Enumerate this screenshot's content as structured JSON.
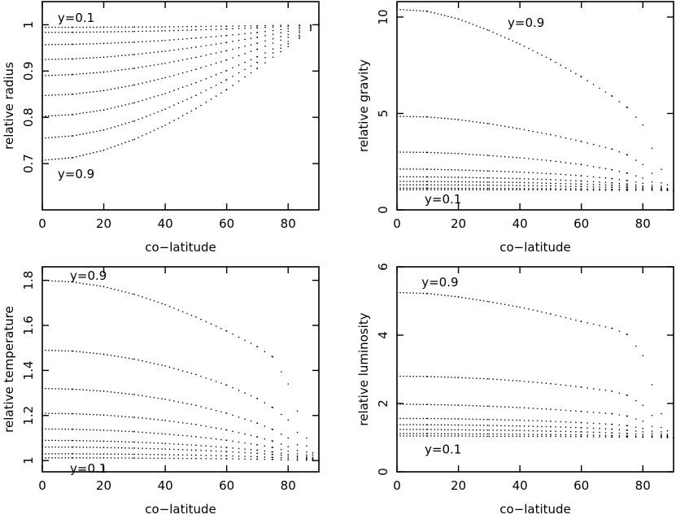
{
  "chart_data": [
    {
      "id": "radius",
      "type": "scatter",
      "xlabel": "co−latitude",
      "ylabel": "relative radius",
      "xlim": [
        0,
        90
      ],
      "ylim": [
        0.6,
        1.05
      ],
      "xticks": [
        0,
        20,
        40,
        60,
        80
      ],
      "xtick_labels": [
        "0",
        "20",
        "40",
        "60",
        "80"
      ],
      "yticks": [
        0.7,
        0.8,
        0.9,
        1.0
      ],
      "ytick_labels": [
        "0.7",
        "0.8",
        "0.9",
        "1"
      ],
      "annotations": [
        {
          "text": "y=0.1",
          "x": 5,
          "y": 1.015
        },
        {
          "text": "y=0.9",
          "x": 5,
          "y": 0.677
        }
      ],
      "x": [
        0,
        10,
        20,
        30,
        40,
        50,
        60,
        70,
        80,
        90
      ],
      "series": [
        {
          "values": [
            0.9945,
            0.9946,
            0.9948,
            0.9951,
            0.9955,
            0.9963,
            0.997,
            0.9979,
            0.999,
            1.0
          ]
        },
        {
          "values": [
            0.9835,
            0.9838,
            0.9845,
            0.9856,
            0.987,
            0.9888,
            0.9909,
            0.9936,
            0.9967,
            1.0
          ]
        },
        {
          "values": [
            0.957,
            0.9578,
            0.9596,
            0.9625,
            0.9663,
            0.9712,
            0.9768,
            0.9834,
            0.9915,
            1.0
          ]
        },
        {
          "values": [
            0.925,
            0.9263,
            0.93,
            0.9357,
            0.943,
            0.9517,
            0.9617,
            0.9732,
            0.986,
            1.0
          ]
        },
        {
          "values": [
            0.89,
            0.8925,
            0.8978,
            0.906,
            0.9168,
            0.9296,
            0.944,
            0.9601,
            0.979,
            1.0
          ]
        },
        {
          "values": [
            0.847,
            0.85,
            0.8578,
            0.87,
            0.8857,
            0.9038,
            0.9241,
            0.9473,
            0.973,
            1.0
          ]
        },
        {
          "values": [
            0.802,
            0.806,
            0.816,
            0.8315,
            0.8515,
            0.875,
            0.901,
            0.931,
            0.964,
            1.0
          ]
        },
        {
          "values": [
            0.755,
            0.76,
            0.7725,
            0.7922,
            0.8177,
            0.8475,
            0.8812,
            0.919,
            0.959,
            1.0
          ]
        },
        {
          "values": [
            0.707,
            0.713,
            0.729,
            0.7525,
            0.783,
            0.819,
            0.86,
            0.906,
            0.953,
            1.0
          ]
        }
      ]
    },
    {
      "id": "gravity",
      "type": "scatter",
      "xlabel": "co−latitude",
      "ylabel": "relative gravity",
      "xlim": [
        0,
        90
      ],
      "ylim": [
        0,
        10.8
      ],
      "xticks": [
        0,
        20,
        40,
        60,
        80
      ],
      "xtick_labels": [
        "0",
        "20",
        "40",
        "60",
        "80"
      ],
      "yticks": [
        0,
        5,
        10
      ],
      "ytick_labels": [
        "0",
        "5",
        "10"
      ],
      "annotations": [
        {
          "text": "y=0.9",
          "x": 36,
          "y": 9.7
        },
        {
          "text": "y=0.1",
          "x": 9,
          "y": 0.55
        }
      ],
      "x": [
        0,
        10,
        20,
        30,
        40,
        50,
        60,
        70,
        75,
        80,
        83,
        86,
        88,
        90
      ],
      "series": [
        {
          "values": [
            1.05,
            1.05,
            1.05,
            1.04,
            1.04,
            1.04,
            1.03,
            1.02,
            1.02,
            1.01,
            1.01,
            1.0,
            1.0,
            1.0
          ]
        },
        {
          "values": [
            1.13,
            1.13,
            1.12,
            1.12,
            1.11,
            1.1,
            1.09,
            1.07,
            1.06,
            1.05,
            1.04,
            1.02,
            1.01,
            1.0
          ]
        },
        {
          "values": [
            1.3,
            1.3,
            1.29,
            1.28,
            1.26,
            1.24,
            1.21,
            1.17,
            1.15,
            1.11,
            1.08,
            1.05,
            1.02,
            1.0
          ]
        },
        {
          "values": [
            1.48,
            1.47,
            1.46,
            1.44,
            1.42,
            1.38,
            1.34,
            1.28,
            1.24,
            1.18,
            1.13,
            1.07,
            1.03,
            1.0
          ]
        },
        {
          "values": [
            1.72,
            1.71,
            1.69,
            1.66,
            1.62,
            1.57,
            1.5,
            1.4,
            1.34,
            1.25,
            1.18,
            1.1,
            1.04,
            1.0
          ]
        },
        {
          "values": [
            2.12,
            2.11,
            2.07,
            2.02,
            1.96,
            1.88,
            1.77,
            1.62,
            1.52,
            1.38,
            1.27,
            1.15,
            1.06,
            1.0
          ]
        },
        {
          "values": [
            3.0,
            2.98,
            2.92,
            2.82,
            2.7,
            2.55,
            2.35,
            2.08,
            1.9,
            1.65,
            1.45,
            1.23,
            1.09,
            1.0
          ]
        },
        {
          "values": [
            4.85,
            4.82,
            4.68,
            4.47,
            4.2,
            3.9,
            3.55,
            3.15,
            2.85,
            2.35,
            1.9,
            1.4,
            1.12,
            1.0
          ]
        },
        {
          "values": [
            10.4,
            10.3,
            9.9,
            9.3,
            8.6,
            7.8,
            6.9,
            5.9,
            5.3,
            4.4,
            3.2,
            2.1,
            1.3,
            1.0
          ]
        }
      ]
    },
    {
      "id": "temperature",
      "type": "scatter",
      "xlabel": "co−latitude",
      "ylabel": "relative temperature",
      "xlim": [
        0,
        90
      ],
      "ylim": [
        0.95,
        1.86
      ],
      "xticks": [
        0,
        20,
        40,
        60,
        80
      ],
      "xtick_labels": [
        "0",
        "20",
        "40",
        "60",
        "80"
      ],
      "yticks": [
        1.0,
        1.2,
        1.4,
        1.6,
        1.8
      ],
      "ytick_labels": [
        "1",
        "1.2",
        "1.4",
        "1.6",
        "1.8"
      ],
      "annotations": [
        {
          "text": "y=0.9",
          "x": 9,
          "y": 1.82
        },
        {
          "text": "y=0.1",
          "x": 9,
          "y": 0.965
        }
      ],
      "x": [
        0,
        10,
        20,
        30,
        40,
        50,
        60,
        70,
        75,
        80,
        83,
        86,
        88,
        90
      ],
      "series": [
        {
          "values": [
            1.012,
            1.012,
            1.012,
            1.011,
            1.01,
            1.009,
            1.008,
            1.006,
            1.005,
            1.003,
            1.002,
            1.001,
            1.0,
            1.0
          ]
        },
        {
          "values": [
            1.03,
            1.03,
            1.029,
            1.028,
            1.026,
            1.024,
            1.021,
            1.017,
            1.014,
            1.011,
            1.008,
            1.005,
            1.002,
            1.0
          ]
        },
        {
          "values": [
            1.06,
            1.06,
            1.058,
            1.055,
            1.051,
            1.046,
            1.04,
            1.032,
            1.027,
            1.02,
            1.015,
            1.009,
            1.004,
            1.0
          ]
        },
        {
          "values": [
            1.09,
            1.089,
            1.086,
            1.082,
            1.076,
            1.068,
            1.058,
            1.046,
            1.038,
            1.028,
            1.02,
            1.012,
            1.005,
            1.0
          ]
        },
        {
          "values": [
            1.14,
            1.139,
            1.135,
            1.128,
            1.118,
            1.106,
            1.09,
            1.07,
            1.058,
            1.042,
            1.03,
            1.017,
            1.007,
            1.0
          ]
        },
        {
          "values": [
            1.21,
            1.208,
            1.202,
            1.192,
            1.178,
            1.16,
            1.136,
            1.105,
            1.086,
            1.062,
            1.044,
            1.025,
            1.01,
            1.0
          ]
        },
        {
          "values": [
            1.32,
            1.317,
            1.308,
            1.293,
            1.272,
            1.245,
            1.21,
            1.166,
            1.138,
            1.1,
            1.07,
            1.038,
            1.015,
            1.0
          ]
        },
        {
          "values": [
            1.49,
            1.486,
            1.472,
            1.45,
            1.42,
            1.382,
            1.335,
            1.275,
            1.235,
            1.18,
            1.125,
            1.065,
            1.025,
            1.0
          ]
        },
        {
          "values": [
            1.8,
            1.793,
            1.772,
            1.738,
            1.692,
            1.637,
            1.575,
            1.505,
            1.46,
            1.34,
            1.22,
            1.1,
            1.035,
            1.0
          ]
        }
      ]
    },
    {
      "id": "luminosity",
      "type": "scatter",
      "xlabel": "co−latitude",
      "ylabel": "relative luminosity",
      "xlim": [
        0,
        90
      ],
      "ylim": [
        0,
        6.0
      ],
      "xticks": [
        0,
        20,
        40,
        60,
        80
      ],
      "xtick_labels": [
        "0",
        "20",
        "40",
        "60",
        "80"
      ],
      "yticks": [
        0,
        2,
        4,
        6
      ],
      "ytick_labels": [
        "0",
        "2",
        "4",
        "6"
      ],
      "annotations": [
        {
          "text": "y=0.9",
          "x": 8,
          "y": 5.55
        },
        {
          "text": "y=0.1",
          "x": 9,
          "y": 0.65
        }
      ],
      "x": [
        0,
        10,
        20,
        30,
        40,
        50,
        60,
        70,
        75,
        80,
        83,
        86,
        88,
        90
      ],
      "series": [
        {
          "values": [
            1.05,
            1.05,
            1.05,
            1.04,
            1.04,
            1.04,
            1.03,
            1.02,
            1.02,
            1.01,
            1.01,
            1.0,
            1.0,
            1.0
          ]
        },
        {
          "values": [
            1.12,
            1.12,
            1.11,
            1.11,
            1.1,
            1.09,
            1.08,
            1.06,
            1.05,
            1.04,
            1.03,
            1.02,
            1.01,
            1.0
          ]
        },
        {
          "values": [
            1.24,
            1.24,
            1.23,
            1.22,
            1.21,
            1.19,
            1.17,
            1.14,
            1.12,
            1.09,
            1.06,
            1.04,
            1.02,
            1.0
          ]
        },
        {
          "values": [
            1.38,
            1.38,
            1.37,
            1.36,
            1.34,
            1.32,
            1.29,
            1.25,
            1.22,
            1.17,
            1.12,
            1.06,
            1.03,
            1.0
          ]
        },
        {
          "values": [
            1.56,
            1.56,
            1.55,
            1.53,
            1.51,
            1.48,
            1.44,
            1.39,
            1.35,
            1.27,
            1.19,
            1.1,
            1.04,
            1.0
          ]
        },
        {
          "values": [
            1.98,
            1.97,
            1.95,
            1.92,
            1.88,
            1.83,
            1.77,
            1.7,
            1.63,
            1.48,
            1.33,
            1.17,
            1.06,
            1.0
          ]
        },
        {
          "values": [
            2.8,
            2.79,
            2.76,
            2.72,
            2.66,
            2.58,
            2.48,
            2.36,
            2.24,
            1.95,
            1.65,
            1.3,
            1.1,
            1.0
          ]
        },
        {
          "values": [
            5.25,
            5.22,
            5.12,
            4.98,
            4.82,
            4.62,
            4.4,
            4.2,
            4.02,
            3.4,
            2.55,
            1.7,
            1.2,
            1.0
          ]
        }
      ]
    }
  ]
}
